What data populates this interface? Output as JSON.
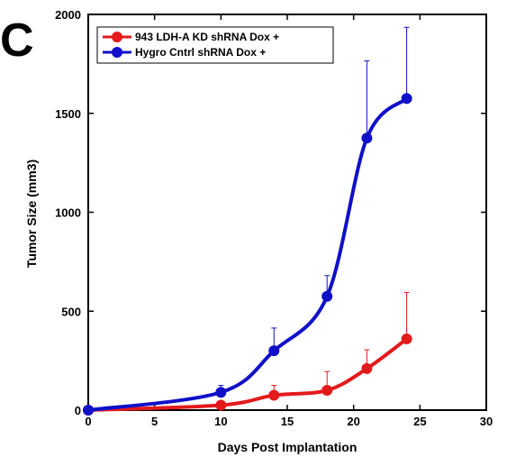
{
  "panel_label": "C",
  "colors": {
    "series_1": "#e31a1c",
    "series_2": "#1010c8",
    "axis": "#000000"
  },
  "chart_data": {
    "type": "line",
    "title": "",
    "xlabel": "Days Post Implantation",
    "ylabel": "Tumor Size (mm3)",
    "xlim": [
      0,
      30
    ],
    "ylim": [
      0,
      2000
    ],
    "xticks": [
      0,
      5,
      10,
      15,
      20,
      25,
      30
    ],
    "yticks": [
      0,
      500,
      1000,
      1500,
      2000
    ],
    "grid": false,
    "legend_position": "top-left",
    "series": [
      {
        "name": "943 LDH-A KD shRNA Dox +",
        "color": "#e31a1c",
        "x": [
          0,
          10,
          14,
          18,
          21,
          24
        ],
        "y": [
          0,
          25,
          75,
          100,
          210,
          360
        ],
        "error": [
          0,
          0,
          50,
          95,
          95,
          235
        ]
      },
      {
        "name": "Hygro Cntrl shRNA  Dox +",
        "color": "#1010c8",
        "x": [
          0,
          10,
          14,
          18,
          21,
          24
        ],
        "y": [
          0,
          90,
          300,
          575,
          1375,
          1575
        ],
        "error": [
          0,
          35,
          115,
          105,
          390,
          360
        ]
      }
    ]
  }
}
